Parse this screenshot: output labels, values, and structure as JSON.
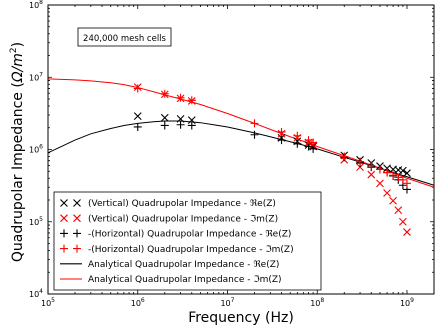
{
  "chart_data": {
    "type": "scatter",
    "x_scale": "log",
    "y_scale": "log",
    "xlim": [
      100000,
      2000000000
    ],
    "ylim": [
      10000,
      100000000
    ],
    "xlabel": "Frequency (Hz)",
    "ylabel": "Quadrupolar Impedance (Ω/m²)",
    "ylabel_parts": [
      "Quadrupolar Impedance (",
      "Ω/m",
      "2",
      ")"
    ],
    "annotation": "240,000 mesh cells",
    "x_ticks": [
      {
        "value": 100000,
        "base": "10",
        "exp": "5"
      },
      {
        "value": 1000000,
        "base": "10",
        "exp": "6"
      },
      {
        "value": 10000000,
        "base": "10",
        "exp": "7"
      },
      {
        "value": 100000000,
        "base": "10",
        "exp": "8"
      },
      {
        "value": 1000000000,
        "base": "10",
        "exp": "9"
      }
    ],
    "y_ticks": [
      {
        "value": 10000,
        "base": "10",
        "exp": "4"
      },
      {
        "value": 100000,
        "base": "10",
        "exp": "5"
      },
      {
        "value": 1000000,
        "base": "10",
        "exp": "6"
      },
      {
        "value": 10000000,
        "base": "10",
        "exp": "7"
      },
      {
        "value": 100000000,
        "base": "10",
        "exp": "8"
      }
    ],
    "legend_position": "lower-left",
    "series": [
      {
        "name": "(Vertical) Quadrupolar Impedance - ℜe(Z)",
        "marker": "x",
        "color": "#000000",
        "x": [
          1000000,
          2000000,
          3000000,
          4000000,
          40000000,
          60000000,
          80000000,
          90000000,
          200000000,
          300000000,
          400000000,
          500000000,
          600000000,
          700000000,
          800000000,
          900000000,
          1000000000
        ],
        "y": [
          2900000,
          2750000,
          2650000,
          2550000,
          1450000,
          1300000,
          1150000,
          1100000,
          830000,
          720000,
          650000,
          590000,
          550000,
          530000,
          520000,
          510000,
          470000
        ]
      },
      {
        "name": "(Vertical) Quadrupolar Impedance - ℑm(Z)",
        "marker": "x",
        "color": "#ff0000",
        "x": [
          1000000,
          2000000,
          3000000,
          4000000,
          40000000,
          60000000,
          80000000,
          90000000,
          200000000,
          300000000,
          400000000,
          500000000,
          600000000,
          700000000,
          800000000,
          900000000,
          1000000000
        ],
        "y": [
          7300000,
          5800000,
          5100000,
          4700000,
          1650000,
          1450000,
          1250000,
          1150000,
          720000,
          570000,
          450000,
          340000,
          250000,
          195000,
          145000,
          100000,
          72000
        ]
      },
      {
        "name": "-(Horizontal) Quadrupolar Impedance - ℜe(Z)",
        "marker": "+",
        "color": "#000000",
        "x": [
          1000000,
          2000000,
          3000000,
          4000000,
          20000000,
          40000000,
          60000000,
          80000000,
          90000000,
          200000000,
          300000000,
          400000000,
          500000000,
          600000000,
          700000000,
          800000000,
          900000000,
          1000000000
        ],
        "y": [
          2050000,
          2150000,
          2200000,
          2150000,
          1600000,
          1350000,
          1200000,
          1100000,
          1020000,
          780000,
          650000,
          570000,
          530000,
          480000,
          430000,
          380000,
          320000,
          280000
        ]
      },
      {
        "name": "-(Horizontal) Quadrupolar Impedance - ℑm(Z)",
        "marker": "+",
        "color": "#ff0000",
        "x": [
          1000000,
          2000000,
          3000000,
          4000000,
          20000000,
          40000000,
          60000000,
          80000000,
          90000000,
          200000000,
          300000000,
          400000000,
          500000000,
          600000000,
          700000000,
          800000000,
          900000000,
          1000000000
        ],
        "y": [
          7000000,
          5900000,
          5200000,
          4800000,
          2300000,
          1750000,
          1550000,
          1350000,
          1250000,
          800000,
          680000,
          600000,
          530000,
          480000,
          440000,
          410000,
          380000,
          340000
        ]
      },
      {
        "name": "Analytical Quadrupolar Impedance - ℜe(Z)",
        "line": true,
        "color": "#000000",
        "x": [
          100000,
          200000,
          300000,
          500000,
          700000,
          1000000,
          1500000,
          2000000,
          3000000,
          5000000,
          7000000,
          10000000,
          20000000,
          30000000,
          50000000,
          70000000,
          100000000,
          200000000,
          300000000,
          500000000,
          700000000,
          1000000000,
          2000000000
        ],
        "y": [
          900000,
          1350000,
          1650000,
          1950000,
          2150000,
          2300000,
          2420000,
          2480000,
          2480000,
          2350000,
          2200000,
          2050000,
          1700000,
          1500000,
          1280000,
          1150000,
          1020000,
          780000,
          670000,
          550000,
          480000,
          420000,
          320000
        ]
      },
      {
        "name": "Analytical Quadrupolar Impedance - ℑm(Z)",
        "line": true,
        "color": "#ff0000",
        "x": [
          100000,
          200000,
          300000,
          500000,
          700000,
          1000000,
          1500000,
          2000000,
          3000000,
          5000000,
          7000000,
          10000000,
          20000000,
          30000000,
          50000000,
          70000000,
          100000000,
          200000000,
          300000000,
          500000000,
          700000000,
          1000000000,
          2000000000
        ],
        "y": [
          9500000,
          9200000,
          8900000,
          8400000,
          7900000,
          7200000,
          6300000,
          5700000,
          5000000,
          4200000,
          3650000,
          3150000,
          2300000,
          1900000,
          1500000,
          1300000,
          1100000,
          820000,
          690000,
          550000,
          470000,
          400000,
          300000
        ]
      }
    ]
  }
}
